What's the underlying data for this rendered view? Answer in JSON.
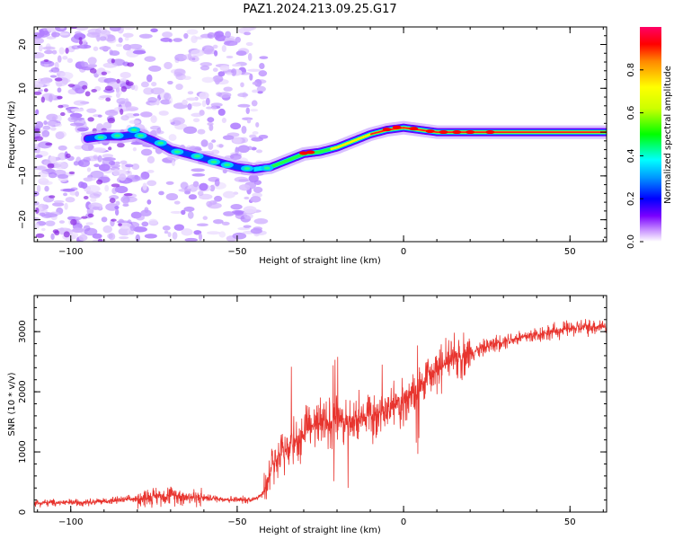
{
  "figure_title": "PAZ1.2024.213.09.25.G17",
  "chart_data": [
    {
      "type": "heatmap",
      "xlabel": "Height of straight line (km)",
      "ylabel": "Frequency (Hz)",
      "xlim": [
        -111,
        61
      ],
      "ylim": [
        -25,
        24
      ],
      "xticks": [
        -100,
        -50,
        0,
        50
      ],
      "yticks": [
        -20,
        -10,
        0,
        10,
        20
      ],
      "ridge": {
        "x": [
          -95,
          -90,
          -85,
          -80,
          -75,
          -70,
          -65,
          -60,
          -55,
          -50,
          -45,
          -40,
          -35,
          -30,
          -25,
          -20,
          -15,
          -10,
          -5,
          0,
          5,
          10,
          20,
          30,
          61
        ],
        "y": [
          -1.5,
          -1,
          -1,
          -0.5,
          -2,
          -4,
          -5,
          -6,
          -7,
          -8,
          -8.5,
          -8,
          -6.5,
          -5,
          -4.5,
          -3.5,
          -2,
          -0.5,
          0.5,
          1,
          0.5,
          0,
          0,
          0,
          0
        ]
      },
      "colorbar": {
        "label": "Normalized spectral amplitude",
        "range": [
          0,
          1
        ],
        "ticks": [
          0.0,
          0.2,
          0.4,
          0.6,
          0.8
        ]
      }
    },
    {
      "type": "line",
      "xlabel": "Height of straight line (km)",
      "ylabel": "SNR (10 * v/v)",
      "xlim": [
        -111,
        61
      ],
      "ylim": [
        0,
        3600
      ],
      "xticks": [
        -100,
        -50,
        0,
        50
      ],
      "yticks": [
        0,
        1000,
        2000,
        3000
      ],
      "color": "#e8342e",
      "series": [
        {
          "x": [
            -111,
            -100,
            -90,
            -80,
            -75,
            -70,
            -60,
            -50,
            -45,
            -42,
            -40,
            -38,
            -35,
            -30,
            -25,
            -22,
            -20,
            -18,
            -15,
            -10,
            -5,
            0,
            5,
            10,
            15,
            20,
            25,
            30,
            40,
            50,
            61
          ],
          "y": [
            150,
            160,
            180,
            220,
            260,
            280,
            240,
            200,
            210,
            320,
            700,
            900,
            1050,
            1300,
            1500,
            1500,
            1600,
            1450,
            1550,
            1600,
            1700,
            1800,
            2100,
            2350,
            2550,
            2650,
            2750,
            2850,
            2950,
            3050,
            3100
          ]
        }
      ]
    }
  ]
}
